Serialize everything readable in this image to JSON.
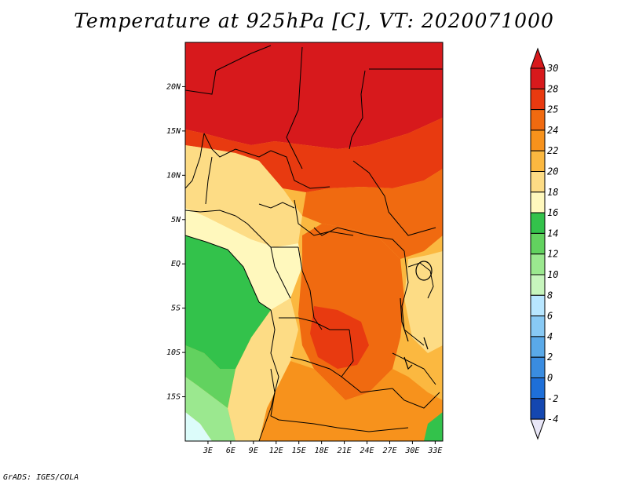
{
  "title": "Temperature at 925hPa [C], VT: 2020071000",
  "credit": "GrADS: IGES/COLA",
  "map": {
    "lon_range": [
      0,
      34
    ],
    "lat_range": [
      -20,
      25
    ],
    "lat_ticks": [
      "20N",
      "15N",
      "10N",
      "5N",
      "EQ",
      "5S",
      "10S",
      "15S"
    ],
    "lat_tick_values": [
      20,
      15,
      10,
      5,
      0,
      -5,
      -10,
      -15
    ],
    "lon_ticks": [
      "3E",
      "6E",
      "9E",
      "12E",
      "15E",
      "18E",
      "21E",
      "24E",
      "27E",
      "30E",
      "33E"
    ],
    "lon_tick_values": [
      3,
      6,
      9,
      12,
      15,
      18,
      21,
      24,
      27,
      30,
      33
    ]
  },
  "colorbar": {
    "labels": [
      "30",
      "28",
      "25",
      "24",
      "22",
      "20",
      "18",
      "16",
      "14",
      "12",
      "10",
      "8",
      "6",
      "4",
      "2",
      "0",
      "-2",
      "-4"
    ],
    "colors": [
      "#d7191c",
      "#e83a10",
      "#f06a10",
      "#f7921c",
      "#fbb840",
      "#fddc85",
      "#fff8bd",
      "#33c24b",
      "#62d25f",
      "#9be88f",
      "#c7f5bd",
      "#b8e6ff",
      "#88c9f4",
      "#5aa9e8",
      "#3a8ce0",
      "#1e6fd8",
      "#1447b0",
      "#0a1f7a"
    ],
    "top_arrow_color": "#d7191c",
    "bottom_arrow_color": "#e8e6f7"
  },
  "regions_legend": {
    "hot_north": "#d7191c",
    "warm_mid": "#f06a10",
    "warm": "#f7921c",
    "mild": "#fbb840",
    "pale": "#fddc85",
    "cream": "#fff8bd",
    "green": "#33c24b",
    "lightgreen": "#62d25f",
    "palegreen": "#9be88f",
    "mint": "#c7f5bd",
    "cyan": "#dcfcfa"
  }
}
